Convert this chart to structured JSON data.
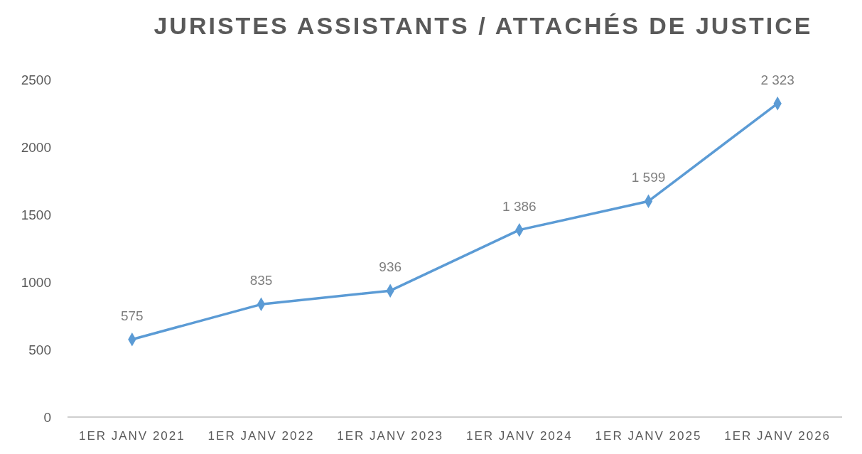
{
  "chart_data": {
    "type": "line",
    "title": "JURISTES ASSISTANTS / ATTACHÉS DE JUSTICE",
    "categories": [
      "1ER JANV 2021",
      "1ER JANV 2022",
      "1ER JANV 2023",
      "1ER JANV 2024",
      "1ER JANV 2025",
      "1ER JANV 2026"
    ],
    "series": [
      {
        "color": "#5b9bd5",
        "values": [
          575,
          835,
          936,
          1386,
          1599,
          2323
        ],
        "value_labels": [
          "575",
          "835",
          "936",
          "1 386",
          "1 599",
          "2 323"
        ]
      }
    ],
    "ylim": [
      0,
      2500
    ],
    "yticks": [
      0,
      500,
      1000,
      1500,
      2000,
      2500
    ],
    "grid": false,
    "marker": "diamond",
    "line_style": "solid"
  }
}
